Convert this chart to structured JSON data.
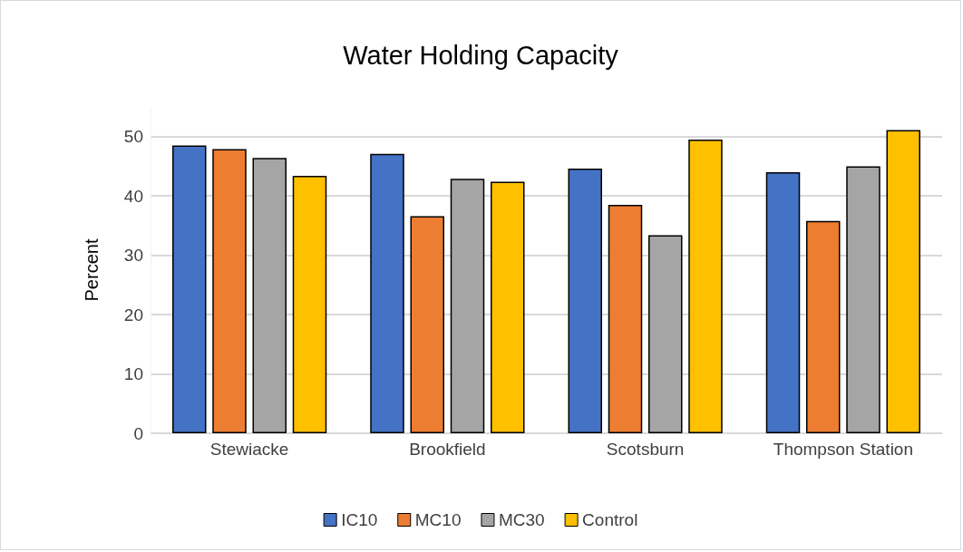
{
  "chart_data": {
    "type": "bar",
    "title": "Water Holding Capacity",
    "ylabel": "Percent",
    "categories": [
      "Stewiacke",
      "Brookfield",
      "Scotsburn",
      "Thompson Station"
    ],
    "series": [
      {
        "name": "IC10",
        "color": "#4472c4",
        "values": [
          48.5,
          47.1,
          44.6,
          44.0
        ]
      },
      {
        "name": "MC10",
        "color": "#ed7d31",
        "values": [
          47.9,
          36.6,
          38.5,
          35.8
        ]
      },
      {
        "name": "MC30",
        "color": "#a5a5a5",
        "values": [
          46.4,
          42.9,
          33.4,
          45.0
        ]
      },
      {
        "name": "Control",
        "color": "#ffc000",
        "values": [
          43.4,
          42.4,
          49.5,
          51.1
        ]
      }
    ],
    "ylim": [
      0,
      55
    ],
    "yticks": [
      0,
      10,
      20,
      30,
      40,
      50
    ],
    "grid": "y",
    "legend": "bottom"
  }
}
